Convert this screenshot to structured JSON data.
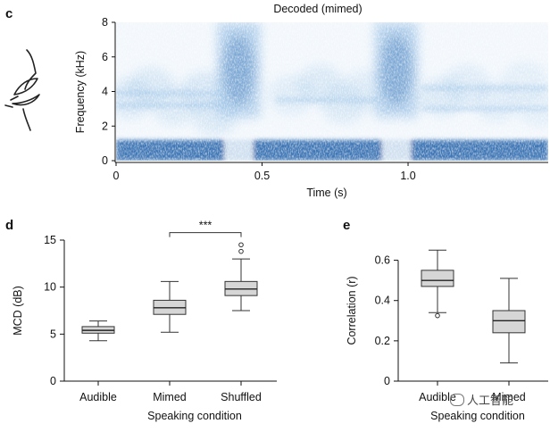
{
  "panels": {
    "c": "c",
    "d": "d",
    "e": "e"
  },
  "chart_data": [
    {
      "id": "c",
      "type": "heatmap",
      "title": "Decoded (mimed)",
      "xlabel": "Time (s)",
      "ylabel": "Frequency (kHz)",
      "xlim": [
        0,
        1.48
      ],
      "ylim": [
        0,
        8
      ],
      "xticks": [
        0,
        0.5,
        1.0
      ],
      "xtick_labels": [
        "0",
        "0.5",
        "1.0"
      ],
      "yticks": [
        0,
        2,
        4,
        6,
        8
      ],
      "ytick_labels": [
        "0",
        "2",
        "4",
        "6",
        "8"
      ],
      "colormap": [
        "#ffffff",
        "#9cc3e6",
        "#1d5fa8"
      ],
      "energy_bursts": [
        {
          "time": 0.42,
          "freq_low": 2.5,
          "freq_high": 8,
          "level": 0.75
        },
        {
          "time": 0.96,
          "freq_low": 2.5,
          "freq_high": 8,
          "level": 0.75
        }
      ],
      "low_band": {
        "freq_low": 0,
        "freq_high": 1.2,
        "level": 0.85
      }
    },
    {
      "id": "d",
      "type": "box",
      "xlabel": "Speaking condition",
      "ylabel": "MCD (dB)",
      "ylim": [
        0,
        15
      ],
      "yticks": [
        0,
        5,
        10,
        15
      ],
      "ytick_labels": [
        "0",
        "5",
        "10",
        "15"
      ],
      "categories": [
        "Audible",
        "Mimed",
        "Shuffled"
      ],
      "boxes": [
        {
          "whisker_low": 4.3,
          "q1": 5.1,
          "median": 5.4,
          "q3": 5.8,
          "whisker_high": 6.4,
          "outliers": []
        },
        {
          "whisker_low": 5.2,
          "q1": 7.1,
          "median": 7.8,
          "q3": 8.6,
          "whisker_high": 10.6,
          "outliers": []
        },
        {
          "whisker_low": 7.5,
          "q1": 9.1,
          "median": 9.8,
          "q3": 10.6,
          "whisker_high": 13.0,
          "outliers": [
            13.8,
            14.5
          ]
        }
      ],
      "significance": {
        "from": "Mimed",
        "to": "Shuffled",
        "y": 15.8,
        "label": "***"
      }
    },
    {
      "id": "e",
      "type": "box",
      "xlabel": "Speaking condition",
      "ylabel": "Correlation (r)",
      "ylim": [
        0,
        0.7
      ],
      "yticks": [
        0,
        0.2,
        0.4,
        0.6
      ],
      "ytick_labels": [
        "0",
        "0.2",
        "0.4",
        "0.6"
      ],
      "categories": [
        "Audible",
        "Mimed"
      ],
      "boxes": [
        {
          "whisker_low": 0.34,
          "q1": 0.47,
          "median": 0.5,
          "q3": 0.55,
          "whisker_high": 0.65,
          "outliers": [
            0.325
          ]
        },
        {
          "whisker_low": 0.09,
          "q1": 0.24,
          "median": 0.3,
          "q3": 0.35,
          "whisker_high": 0.51,
          "outliers": []
        }
      ]
    }
  ],
  "watermark": {
    "text": "人工智能"
  }
}
